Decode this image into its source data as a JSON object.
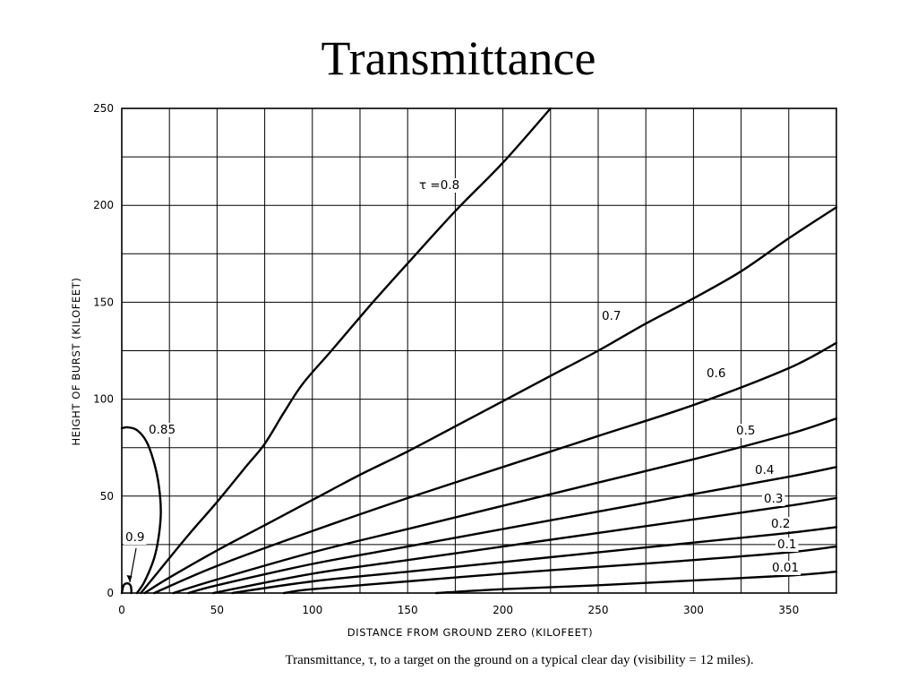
{
  "slide": {
    "title": "Transmittance",
    "caption": "Transmittance, τ, to a target on the ground on a typical clear day (visibility = 12 miles)."
  },
  "chart_data": {
    "type": "line",
    "title": "",
    "xlabel": "DISTANCE FROM GROUND ZERO (KILOFEET)",
    "ylabel": "HEIGHT OF BURST (KILOFEET)",
    "xlim": [
      0,
      375
    ],
    "ylim": [
      0,
      250
    ],
    "x_ticks": [
      0,
      50,
      100,
      150,
      200,
      250,
      300,
      350
    ],
    "y_ticks": [
      0,
      50,
      100,
      150,
      200,
      250
    ],
    "grid": true,
    "grid_x_step": 25,
    "grid_y_step": 25,
    "legend": "none",
    "series": [
      {
        "name": "τ = 0.9",
        "label": "0.9",
        "x": [
          0,
          1,
          3,
          4.5,
          5,
          5
        ],
        "y": [
          0,
          4,
          5,
          4,
          2,
          0
        ]
      },
      {
        "name": "τ = 0.85",
        "label": "0.85",
        "x": [
          0,
          3,
          8,
          13,
          17,
          19.5,
          20.5,
          19.5,
          17,
          12,
          8
        ],
        "y": [
          85,
          85.5,
          84,
          78,
          67,
          55,
          42,
          30,
          18,
          6,
          0
        ]
      },
      {
        "name": "τ = 0.8",
        "label": "τ =0.8",
        "x": [
          10,
          20,
          35,
          50,
          65,
          75,
          85,
          95,
          110,
          130,
          150,
          175,
          200,
          225
        ],
        "y": [
          0,
          12,
          30,
          47,
          65,
          77,
          93,
          108,
          125,
          148,
          170,
          197,
          222,
          250
        ]
      },
      {
        "name": "τ = 0.7",
        "label": "0.7",
        "x": [
          12,
          25,
          50,
          75,
          100,
          125,
          150,
          175,
          200,
          225,
          250,
          275,
          300,
          325,
          350,
          375
        ],
        "y": [
          0,
          8,
          22,
          35,
          48,
          61,
          73,
          86,
          99,
          112,
          125,
          139,
          152,
          166,
          183,
          199
        ]
      },
      {
        "name": "τ = 0.6",
        "label": "0.6",
        "x": [
          17,
          50,
          100,
          150,
          200,
          250,
          300,
          350,
          375
        ],
        "y": [
          0,
          14,
          32,
          49,
          65,
          81,
          97,
          116,
          129
        ]
      },
      {
        "name": "τ = 0.5",
        "label": "0.5",
        "x": [
          27,
          50,
          100,
          150,
          200,
          250,
          300,
          350,
          375
        ],
        "y": [
          0,
          7,
          21,
          33,
          45,
          57,
          69,
          82,
          90
        ]
      },
      {
        "name": "τ = 0.4",
        "label": "0.4",
        "x": [
          35,
          50,
          100,
          150,
          200,
          250,
          300,
          350,
          375
        ],
        "y": [
          0,
          4,
          15,
          24,
          33,
          42,
          51,
          60,
          65
        ]
      },
      {
        "name": "τ = 0.3",
        "label": "0.3",
        "x": [
          48,
          100,
          150,
          200,
          250,
          300,
          350,
          375
        ],
        "y": [
          0,
          10,
          17,
          24,
          31,
          38,
          45,
          49
        ]
      },
      {
        "name": "τ = 0.2",
        "label": "0.2",
        "x": [
          58,
          100,
          150,
          200,
          250,
          300,
          350,
          375
        ],
        "y": [
          0,
          6,
          11,
          16,
          21,
          26,
          31,
          34
        ]
      },
      {
        "name": "τ = 0.1",
        "label": "0.1",
        "x": [
          85,
          100,
          150,
          200,
          250,
          300,
          350,
          375
        ],
        "y": [
          0,
          2,
          6,
          10,
          13.5,
          17,
          21,
          24
        ]
      },
      {
        "name": "τ = 0.01",
        "label": "0.01",
        "x": [
          165,
          200,
          250,
          300,
          350,
          375
        ],
        "y": [
          0,
          2,
          4,
          6.5,
          9,
          11
        ]
      }
    ]
  }
}
